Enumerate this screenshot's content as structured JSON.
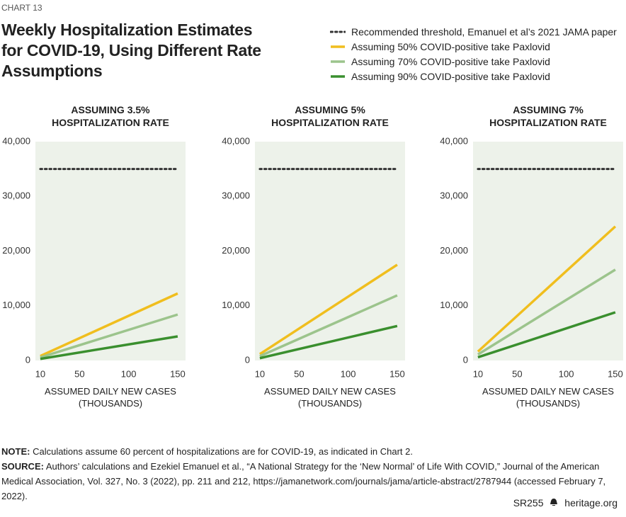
{
  "header": {
    "label": "CHART 13",
    "title": "Weekly Hospitalization Estimates for COVID-19, Using Different Rate Assumptions"
  },
  "chart_data": [
    {
      "type": "line",
      "title": "ASSUMING 3.5% HOSPITALIZATION RATE",
      "x_label": "ASSUMED DAILY NEW CASES (THOUSANDS)",
      "x": [
        10,
        150
      ],
      "xlim": [
        5,
        158
      ],
      "xticks": [
        10,
        50,
        100,
        150
      ],
      "ylim": [
        0,
        40000
      ],
      "yticks": [
        0,
        {
          "value": 10000,
          "label": "10,000"
        },
        {
          "value": 20000,
          "label": "20,000"
        },
        {
          "value": 30000,
          "label": "30,000"
        },
        {
          "value": 40000,
          "label": "40,000"
        }
      ],
      "plot_background": "#edf2ea",
      "series": [
        {
          "name": "Recommended threshold, Emanuel et al’s 2021 JAMA paper",
          "color": "#333333",
          "line_style": "dotted",
          "values": [
            35000,
            35000
          ]
        },
        {
          "name": "Assuming 50% COVID-positive take Paxlovid",
          "color": "#f0be1e",
          "values": [
            817,
            12250
          ]
        },
        {
          "name": "Assuming 70% COVID-positive take Paxlovid",
          "color": "#9cc48c",
          "values": [
            560,
            8400
          ]
        },
        {
          "name": "Assuming 90% COVID-positive take Paxlovid",
          "color": "#3a8f2e",
          "values": [
            293,
            4400
          ]
        }
      ]
    },
    {
      "type": "line",
      "title": "ASSUMING 5% HOSPITALIZATION RATE",
      "x_label": "ASSUMED DAILY NEW CASES (THOUSANDS)",
      "x": [
        10,
        150
      ],
      "xlim": [
        5,
        158
      ],
      "xticks": [
        10,
        50,
        100,
        150
      ],
      "ylim": [
        0,
        40000
      ],
      "yticks": [
        0,
        {
          "value": 10000,
          "label": "10,000"
        },
        {
          "value": 20000,
          "label": "20,000"
        },
        {
          "value": 30000,
          "label": "30,000"
        },
        {
          "value": 40000,
          "label": "40,000"
        }
      ],
      "plot_background": "#edf2ea",
      "series": [
        {
          "color": "#333333",
          "line_style": "dotted",
          "values": [
            35000,
            35000
          ]
        },
        {
          "color": "#f0be1e",
          "values": [
            1167,
            17500
          ]
        },
        {
          "color": "#9cc48c",
          "values": [
            793,
            11900
          ]
        },
        {
          "color": "#3a8f2e",
          "values": [
            420,
            6300
          ]
        }
      ]
    },
    {
      "type": "line",
      "title": "ASSUMING 7% HOSPITALIZATION RATE",
      "x_label": "ASSUMED DAILY NEW CASES (THOUSANDS)",
      "x": [
        10,
        150
      ],
      "xlim": [
        5,
        158
      ],
      "xticks": [
        10,
        50,
        100,
        150
      ],
      "ylim": [
        0,
        40000
      ],
      "yticks": [
        0,
        {
          "value": 10000,
          "label": "10,000"
        },
        {
          "value": 20000,
          "label": "20,000"
        },
        {
          "value": 30000,
          "label": "30,000"
        },
        {
          "value": 40000,
          "label": "40,000"
        }
      ],
      "plot_background": "#edf2ea",
      "series": [
        {
          "color": "#333333",
          "line_style": "dotted",
          "values": [
            35000,
            35000
          ]
        },
        {
          "color": "#f0be1e",
          "values": [
            1633,
            24500
          ]
        },
        {
          "color": "#9cc48c",
          "values": [
            1107,
            16600
          ]
        },
        {
          "color": "#3a8f2e",
          "values": [
            587,
            8800
          ]
        }
      ]
    }
  ],
  "footnotes": {
    "note": {
      "label": "NOTE:",
      "text": "Calculations assume 60 percent of hospitalizations are for COVID-19, as indicated in Chart 2."
    },
    "source": {
      "label": "SOURCE:",
      "text": "Authors’ calculations and Ezekiel Emanuel et al., “A National Strategy for the ‘New Normal’ of Life With COVID,” Journal of the American Medical Association, Vol. 327, No. 3 (2022), pp. 211 and 212, https://jamanetwork.com/journals/jama/article-abstract/2787944 (accessed February 7, 2022)."
    }
  },
  "footer": {
    "report": "SR255",
    "site": "heritage.org"
  }
}
